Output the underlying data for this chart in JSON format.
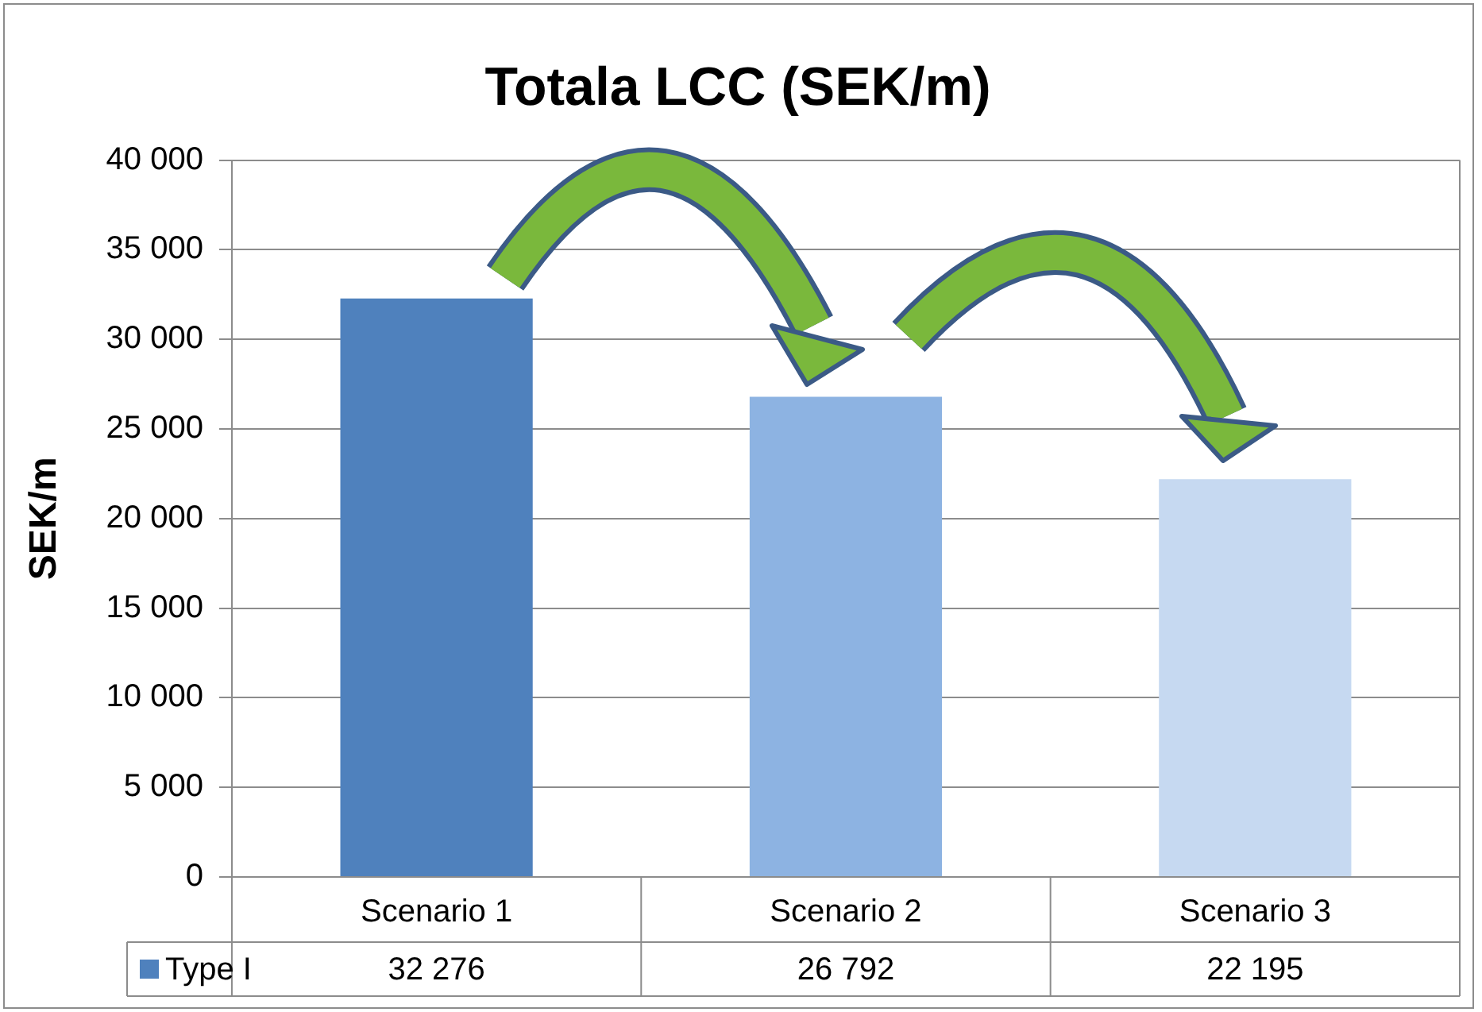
{
  "chart_data": {
    "type": "bar",
    "title": "Totala LCC (SEK/m)",
    "ylabel": "SEK/m",
    "categories": [
      "Scenario 1",
      "Scenario 2",
      "Scenario 3"
    ],
    "series": [
      {
        "name": "Type I",
        "color": "#4f81bd",
        "colors": [
          "#4f81bd",
          "#8db3e2",
          "#c6d9f1"
        ],
        "values": [
          32276,
          26792,
          22195
        ],
        "value_labels": [
          "32 276",
          "26 792",
          "22 195"
        ]
      }
    ],
    "ylim": [
      0,
      40000
    ],
    "yticks": [
      {
        "value": 0,
        "label": "0"
      },
      {
        "value": 5000,
        "label": "5 000"
      },
      {
        "value": 10000,
        "label": "10 000"
      },
      {
        "value": 15000,
        "label": "15 000"
      },
      {
        "value": 20000,
        "label": "20 000"
      },
      {
        "value": 25000,
        "label": "25 000"
      },
      {
        "value": 30000,
        "label": "30 000"
      },
      {
        "value": 35000,
        "label": "35 000"
      },
      {
        "value": 40000,
        "label": "40 000"
      }
    ],
    "grid": "y",
    "legend": "bottom left"
  }
}
